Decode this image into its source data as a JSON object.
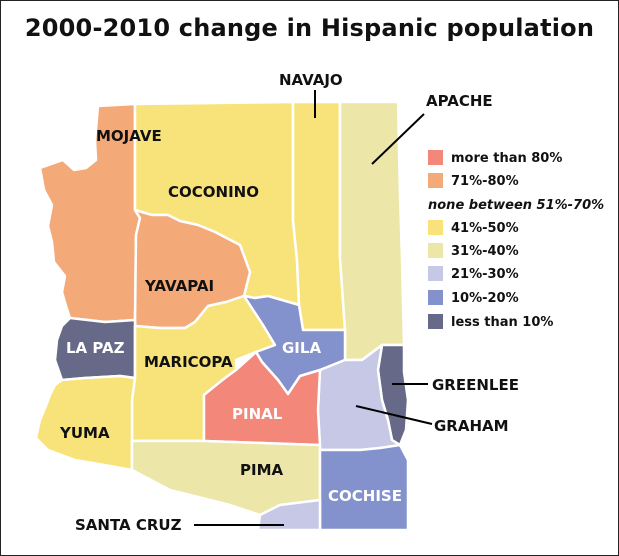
{
  "title": "2000-2010 change in Hispanic population",
  "colors": {
    "more_than_80": "#f2877a",
    "p71_80": "#f3a978",
    "p41_50": "#f8e27a",
    "p31_40": "#ece6a8",
    "p21_30": "#c6c8e6",
    "p10_20": "#8391cc",
    "less_than_10": "#666a88"
  },
  "legend": {
    "items": [
      {
        "label": "more than 80%",
        "color": "#f2877a"
      },
      {
        "label": "71%-80%",
        "color": "#f3a978"
      },
      {
        "label": "none between 51%-70%",
        "color": null
      },
      {
        "label": "41%-50%",
        "color": "#f8e27a"
      },
      {
        "label": "31%-40%",
        "color": "#ece6a8"
      },
      {
        "label": "21%-30%",
        "color": "#c6c8e6"
      },
      {
        "label": "10%-20%",
        "color": "#8391cc"
      },
      {
        "label": "less than 10%",
        "color": "#666a88"
      }
    ]
  },
  "counties": {
    "mojave": {
      "name": "MOJAVE",
      "class": "71%-80%",
      "color": "#f3a978"
    },
    "coconino": {
      "name": "COCONINO",
      "class": "41%-50%",
      "color": "#f8e27a"
    },
    "navajo": {
      "name": "NAVAJO",
      "class": "41%-50%",
      "color": "#f8e27a"
    },
    "apache": {
      "name": "APACHE",
      "class": "31%-40%",
      "color": "#ece6a8"
    },
    "yavapai": {
      "name": "YAVAPAI",
      "class": "71%-80%",
      "color": "#f3a978"
    },
    "lapaz": {
      "name": "LA PAZ",
      "class": "less than 10%",
      "color": "#666a88"
    },
    "maricopa": {
      "name": "MARICOPA",
      "class": "41%-50%",
      "color": "#f8e27a"
    },
    "gila": {
      "name": "GILA",
      "class": "10%-20%",
      "color": "#8391cc"
    },
    "greenlee": {
      "name": "GREENLEE",
      "class": "less than 10%",
      "color": "#666a88"
    },
    "graham": {
      "name": "GRAHAM",
      "class": "21%-30%",
      "color": "#c6c8e6"
    },
    "pinal": {
      "name": "PINAL",
      "class": "more than 80%",
      "color": "#f2877a"
    },
    "yuma": {
      "name": "YUMA",
      "class": "41%-50%",
      "color": "#f8e27a"
    },
    "pima": {
      "name": "PIMA",
      "class": "31%-40%",
      "color": "#ece6a8"
    },
    "cochise": {
      "name": "COCHISE",
      "class": "10%-20%",
      "color": "#8391cc"
    },
    "santacruz": {
      "name": "SANTA CRUZ",
      "class": "21%-30%",
      "color": "#c6c8e6"
    }
  }
}
